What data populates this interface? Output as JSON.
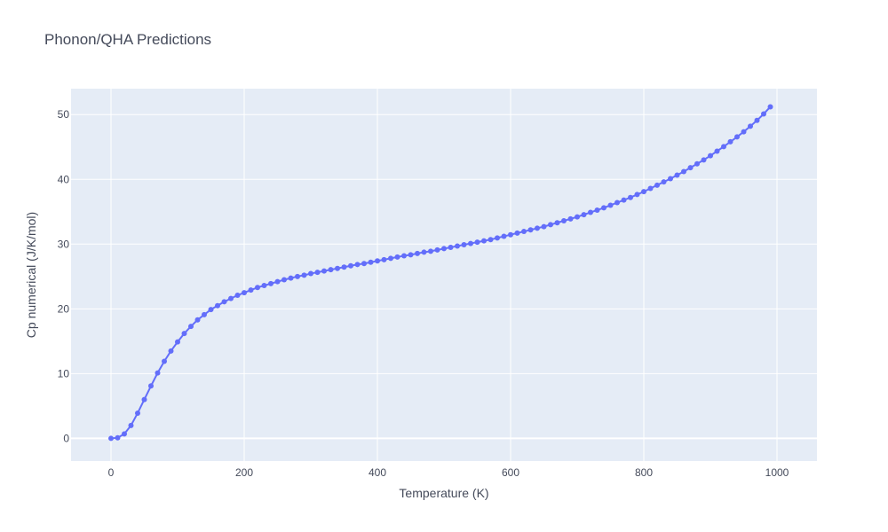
{
  "chart_data": {
    "type": "line",
    "title": "Phonon/QHA Predictions",
    "xlabel": "Temperature (K)",
    "ylabel": "Cp numerical (J/K/mol)",
    "xlim": [
      -60,
      1060
    ],
    "ylim": [
      -3.5,
      54
    ],
    "xticks": [
      0,
      200,
      400,
      600,
      800,
      1000
    ],
    "yticks": [
      0,
      10,
      20,
      30,
      40,
      50
    ],
    "grid": true,
    "legend": "none",
    "colors": {
      "series": "#636efa",
      "plot_bg": "#e5ecf6",
      "grid": "#ffffff",
      "text": "#444a5a"
    },
    "series": [
      {
        "x": [
          0,
          10,
          20,
          30,
          40,
          50,
          60,
          70,
          80,
          90,
          100,
          110,
          120,
          130,
          140,
          150,
          160,
          170,
          180,
          190,
          200,
          210,
          220,
          230,
          240,
          250,
          260,
          270,
          280,
          290,
          300,
          310,
          320,
          330,
          340,
          350,
          360,
          370,
          380,
          390,
          400,
          410,
          420,
          430,
          440,
          450,
          460,
          470,
          480,
          490,
          500,
          510,
          520,
          530,
          540,
          550,
          560,
          570,
          580,
          590,
          600,
          610,
          620,
          630,
          640,
          650,
          660,
          670,
          680,
          690,
          700,
          710,
          720,
          730,
          740,
          750,
          760,
          770,
          780,
          790,
          800,
          810,
          820,
          830,
          840,
          850,
          860,
          870,
          880,
          890,
          900,
          910,
          920,
          930,
          940,
          950,
          960,
          970,
          980,
          990
        ],
        "y": [
          0.0,
          0.1,
          0.7,
          2.0,
          3.9,
          6.0,
          8.1,
          10.1,
          11.9,
          13.5,
          14.9,
          16.2,
          17.3,
          18.3,
          19.1,
          19.9,
          20.5,
          21.1,
          21.6,
          22.1,
          22.5,
          22.9,
          23.3,
          23.6,
          23.9,
          24.2,
          24.5,
          24.75,
          25.0,
          25.2,
          25.45,
          25.65,
          25.85,
          26.05,
          26.25,
          26.45,
          26.65,
          26.85,
          27.0,
          27.2,
          27.4,
          27.6,
          27.8,
          28.0,
          28.2,
          28.35,
          28.55,
          28.75,
          28.9,
          29.1,
          29.3,
          29.5,
          29.7,
          29.9,
          30.1,
          30.3,
          30.5,
          30.7,
          30.95,
          31.2,
          31.45,
          31.7,
          31.95,
          32.2,
          32.45,
          32.7,
          33.0,
          33.3,
          33.6,
          33.9,
          34.2,
          34.55,
          34.9,
          35.25,
          35.6,
          36.0,
          36.4,
          36.8,
          37.2,
          37.65,
          38.1,
          38.6,
          39.1,
          39.6,
          40.1,
          40.65,
          41.2,
          41.8,
          42.4,
          43.0,
          43.65,
          44.35,
          45.05,
          45.8,
          46.55,
          47.35,
          48.2,
          49.1,
          50.1,
          51.2
        ]
      }
    ]
  }
}
